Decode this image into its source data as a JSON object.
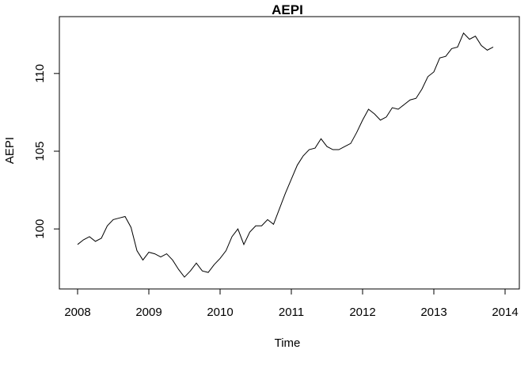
{
  "chart_data": {
    "type": "line",
    "title": "AEPI",
    "xlabel": "Time",
    "ylabel": "AEPI",
    "xlim": [
      2008,
      2014
    ],
    "ylim": [
      96.8,
      113.2
    ],
    "x_ticks": [
      "2008",
      "2009",
      "2010",
      "2011",
      "2012",
      "2013",
      "2014"
    ],
    "y_ticks": [
      "100",
      "105",
      "110"
    ],
    "grid": false,
    "line_color": "#000000",
    "series": [
      {
        "start": 2008,
        "frequency": 12,
        "values": [
          99.0,
          99.3,
          99.5,
          99.2,
          99.4,
          100.2,
          100.6,
          100.7,
          100.8,
          100.1,
          98.6,
          98.0,
          98.5,
          98.4,
          98.2,
          98.4,
          98.0,
          97.4,
          96.9,
          97.3,
          97.8,
          97.3,
          97.2,
          97.7,
          98.1,
          98.6,
          99.5,
          100.0,
          99.0,
          99.8,
          100.2,
          100.2,
          100.6,
          100.3,
          101.3,
          102.3,
          103.2,
          104.1,
          104.7,
          105.1,
          105.2,
          105.8,
          105.3,
          105.1,
          105.1,
          105.3,
          105.5,
          106.2,
          107.0,
          107.7,
          107.4,
          107.0,
          107.2,
          107.8,
          107.7,
          108.0,
          108.3,
          108.4,
          109.0,
          109.8,
          110.1,
          111.0,
          111.1,
          111.6,
          111.7,
          112.6,
          112.2,
          112.4,
          111.8,
          111.5,
          111.7
        ]
      }
    ]
  }
}
